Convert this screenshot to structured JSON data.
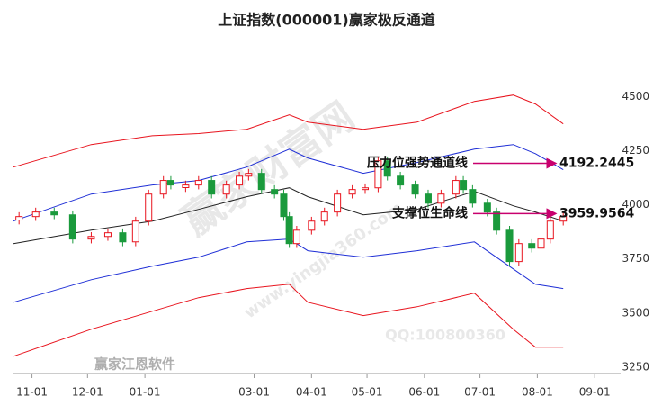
{
  "chart_data": {
    "type": "candlestick",
    "title": "上证指数(000001)赢家极反通道",
    "xlim": [
      -10,
      318
    ],
    "xticks": [
      {
        "value": 0,
        "label": "11-01"
      },
      {
        "value": 30,
        "label": "12-01"
      },
      {
        "value": 61,
        "label": "01-01"
      },
      {
        "value": 120,
        "label": "03-01"
      },
      {
        "value": 151,
        "label": "04-01"
      },
      {
        "value": 181,
        "label": "05-01"
      },
      {
        "value": 212,
        "label": "06-01"
      },
      {
        "value": 242,
        "label": "07-01"
      },
      {
        "value": 273,
        "label": "08-01"
      },
      {
        "value": 304,
        "label": "09-01"
      }
    ],
    "ylim": [
      3220,
      4840
    ],
    "yticks": [
      3250,
      3500,
      3750,
      4000,
      4250,
      4500
    ],
    "grid": false,
    "up_color": "#e8141e",
    "down_color": "#1a9a3c",
    "x": [
      -7,
      2,
      12,
      22,
      32,
      41,
      49,
      56,
      63,
      71,
      75,
      83,
      90,
      97,
      105,
      112,
      117,
      124,
      131,
      136,
      139,
      143,
      151,
      158,
      165,
      173,
      180,
      187,
      192,
      199,
      207,
      214,
      221,
      229,
      233,
      238,
      246,
      251,
      258,
      263,
      270,
      275,
      280,
      287
    ],
    "open": [
      3930,
      3946,
      3967,
      3954,
      3842,
      3854,
      3871,
      3829,
      3925,
      4050,
      4113,
      4080,
      4092,
      4113,
      4050,
      4092,
      4133,
      4146,
      4071,
      4050,
      3946,
      3821,
      3883,
      3925,
      3967,
      4050,
      4071,
      4079,
      4204,
      4133,
      4092,
      4050,
      4008,
      4050,
      4113,
      4071,
      4008,
      3967,
      3883,
      3738,
      3821,
      3800,
      3842,
      3925
    ],
    "high": [
      3966,
      3987,
      3987,
      3974,
      3874,
      3891,
      3891,
      3945,
      4070,
      4133,
      4133,
      4112,
      4133,
      4133,
      4112,
      4153,
      4166,
      4166,
      4091,
      4070,
      3966,
      3903,
      3945,
      3987,
      4070,
      4091,
      4099,
      4224,
      4224,
      4153,
      4112,
      4070,
      4070,
      4133,
      4133,
      4091,
      4028,
      3987,
      3903,
      3841,
      3841,
      3862,
      3945,
      3966
    ],
    "low": [
      3910,
      3926,
      3934,
      3822,
      3822,
      3834,
      3809,
      3809,
      3905,
      4030,
      4072,
      4060,
      4072,
      4030,
      4030,
      4072,
      4113,
      4051,
      4030,
      3926,
      3801,
      3801,
      3863,
      3905,
      3947,
      4030,
      4051,
      4059,
      4113,
      4072,
      4030,
      3988,
      3988,
      4030,
      4051,
      3988,
      3947,
      3863,
      3718,
      3718,
      3780,
      3780,
      3822,
      3905
    ],
    "close": [
      3946,
      3967,
      3954,
      3842,
      3854,
      3871,
      3829,
      3925,
      4050,
      4113,
      4092,
      4092,
      4113,
      4050,
      4092,
      4133,
      4146,
      4071,
      4050,
      3946,
      3821,
      3883,
      3925,
      3967,
      4050,
      4071,
      4079,
      4204,
      4133,
      4092,
      4050,
      4008,
      4050,
      4113,
      4071,
      4008,
      3967,
      3883,
      3738,
      3821,
      3800,
      3842,
      3925,
      3946
    ],
    "lines": [
      {
        "color": "#e8141e",
        "x": [
          -10,
          32,
          65,
          90,
          116,
          139,
          149,
          179,
          208,
          239,
          260,
          272,
          287
        ],
        "values": [
          4175,
          4279,
          4320,
          4330,
          4350,
          4417,
          4383,
          4350,
          4383,
          4479,
          4508,
          4467,
          4375
        ]
      },
      {
        "color": "#1f2fd6",
        "x": [
          -10,
          32,
          65,
          90,
          116,
          139,
          149,
          179,
          208,
          239,
          260,
          272,
          287
        ],
        "values": [
          3925,
          4050,
          4092,
          4113,
          4175,
          4258,
          4217,
          4146,
          4196,
          4258,
          4279,
          4237,
          4163
        ]
      },
      {
        "color": "#222222",
        "x": [
          -10,
          32,
          65,
          90,
          116,
          139,
          149,
          179,
          208,
          239,
          260,
          272,
          287
        ],
        "values": [
          3821,
          3883,
          3925,
          3979,
          4038,
          4079,
          4038,
          3954,
          3979,
          4063,
          3996,
          3967,
          3925
        ]
      },
      {
        "color": "#1f2fd6",
        "x": [
          -10,
          32,
          65,
          90,
          116,
          139,
          149,
          179,
          208,
          239,
          260,
          272,
          287
        ],
        "values": [
          3550,
          3654,
          3717,
          3758,
          3829,
          3842,
          3788,
          3758,
          3788,
          3829,
          3704,
          3633,
          3613
        ]
      },
      {
        "color": "#e8141e",
        "x": [
          -10,
          32,
          65,
          90,
          116,
          139,
          149,
          179,
          208,
          239,
          260,
          272,
          287
        ],
        "values": [
          3300,
          3425,
          3508,
          3571,
          3613,
          3633,
          3550,
          3488,
          3529,
          3592,
          3425,
          3342,
          3342
        ]
      }
    ],
    "annotations": [
      {
        "text": "压力位强势通道线",
        "value": 4192.2445,
        "color": "#c8006e"
      },
      {
        "text": "支撑位生命线",
        "value": 3959.9564,
        "color": "#c8006e"
      }
    ],
    "watermarks": [
      "赢家财富网",
      "赢家江恩软件",
      "www.yingjia360.com",
      "QQ:100800360"
    ]
  }
}
